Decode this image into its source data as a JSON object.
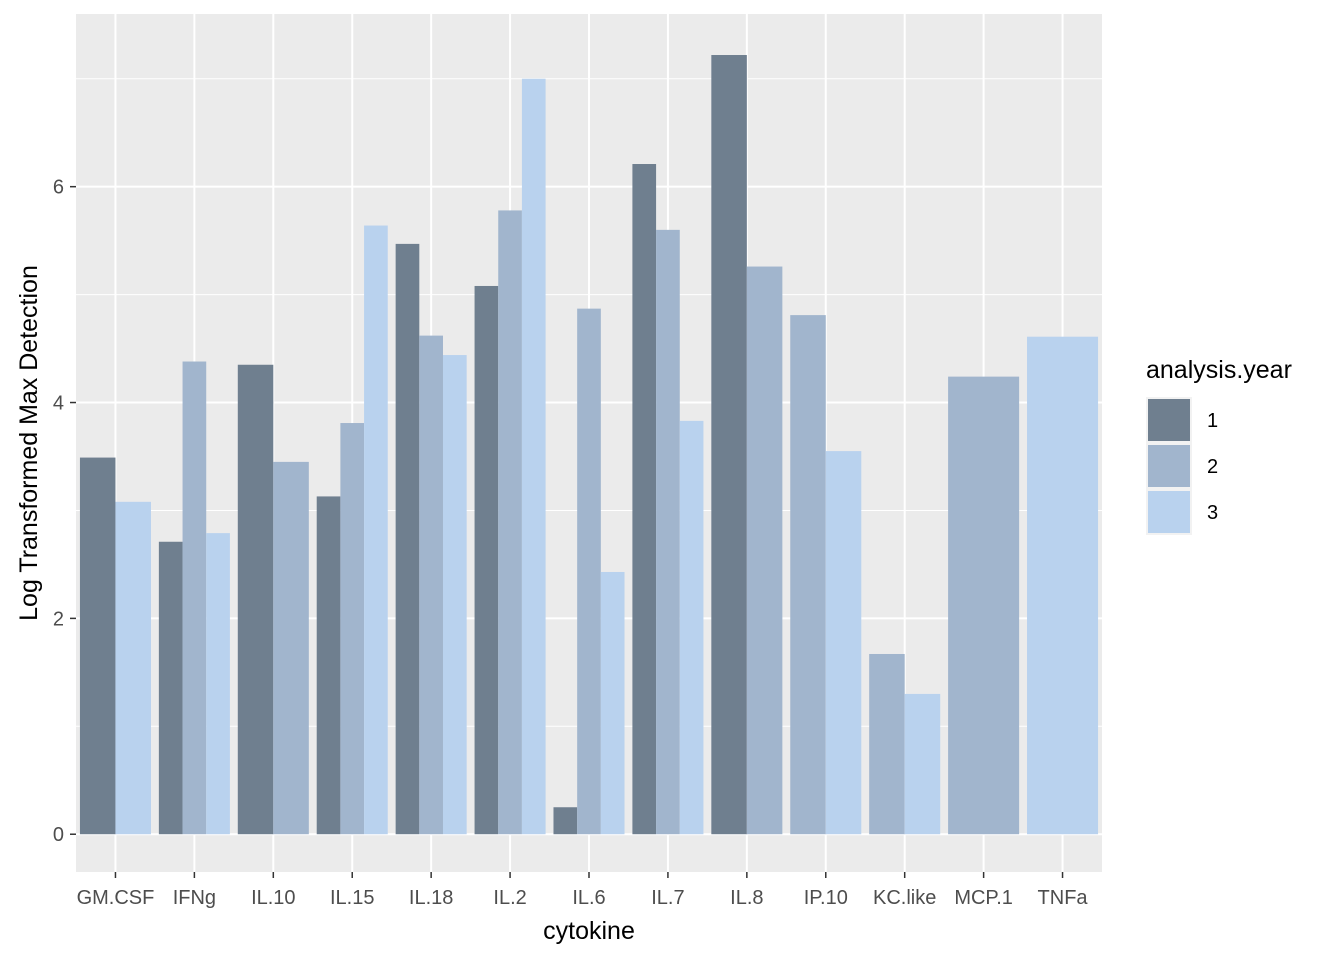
{
  "chart_data": {
    "type": "bar",
    "xlabel": "cytokine",
    "ylabel": "Log Transformed Max Detection",
    "ylim": [
      -0.35,
      7.6
    ],
    "yticks": [
      0,
      2,
      4,
      6
    ],
    "grid": true,
    "legend": {
      "title": "analysis.year",
      "placement": "right",
      "entries": [
        "1",
        "2",
        "3"
      ]
    },
    "colors": {
      "panel_background": "#ebebeb",
      "grid": "#ffffff",
      "series_1": "#6f7f8f",
      "series_2": "#a1b5cd",
      "series_3": "#b9d2ee"
    },
    "categories": [
      "GM.CSF",
      "IFNg",
      "IL.10",
      "IL.15",
      "IL.18",
      "IL.2",
      "IL.6",
      "IL.7",
      "IL.8",
      "IP.10",
      "KC.like",
      "MCP.1",
      "TNFa"
    ],
    "series": [
      {
        "name": "1",
        "values": [
          3.49,
          2.71,
          4.35,
          3.13,
          5.47,
          5.08,
          0.25,
          6.21,
          7.22,
          null,
          null,
          null,
          null
        ]
      },
      {
        "name": "2",
        "values": [
          null,
          4.38,
          3.45,
          3.81,
          4.62,
          5.78,
          4.87,
          5.6,
          5.26,
          4.81,
          1.67,
          4.24,
          null
        ]
      },
      {
        "name": "3",
        "values": [
          3.08,
          2.79,
          null,
          5.64,
          4.44,
          7.0,
          2.43,
          3.83,
          null,
          3.55,
          1.3,
          null,
          4.61
        ]
      }
    ]
  }
}
